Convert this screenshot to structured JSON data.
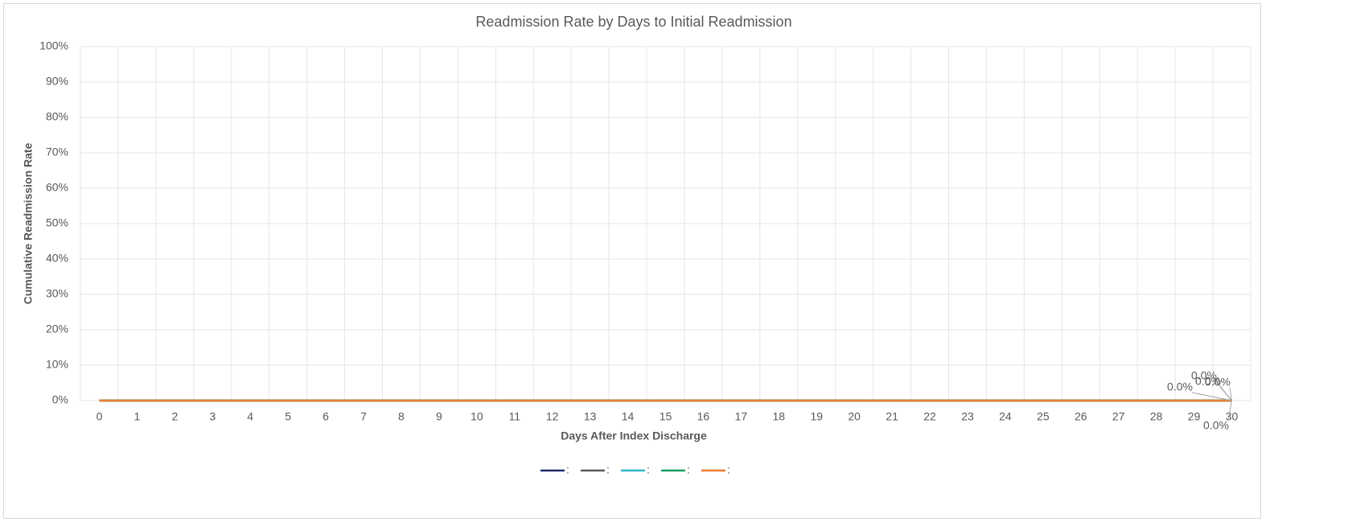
{
  "chart_data": {
    "type": "line",
    "title": "Readmission Rate by Days to Initial Readmission",
    "x_label": "Days After Index Discharge",
    "y_label": "Cumulative Readmission Rate",
    "categories": [
      "0",
      "1",
      "2",
      "3",
      "4",
      "5",
      "6",
      "7",
      "8",
      "9",
      "10",
      "11",
      "12",
      "13",
      "14",
      "15",
      "16",
      "17",
      "18",
      "19",
      "20",
      "21",
      "22",
      "23",
      "24",
      "25",
      "26",
      "27",
      "28",
      "29",
      "30"
    ],
    "ylim": [
      0,
      100
    ],
    "yticks": [
      {
        "value": 0,
        "label": "0%"
      },
      {
        "value": 10,
        "label": "10%"
      },
      {
        "value": 20,
        "label": "20%"
      },
      {
        "value": 30,
        "label": "30%"
      },
      {
        "value": 40,
        "label": "40%"
      },
      {
        "value": 50,
        "label": "50%"
      },
      {
        "value": 60,
        "label": "60%"
      },
      {
        "value": 70,
        "label": "70%"
      },
      {
        "value": 80,
        "label": "80%"
      },
      {
        "value": 90,
        "label": "90%"
      },
      {
        "value": 100,
        "label": "100%"
      }
    ],
    "grid": true,
    "legend": "bottom",
    "series": [
      {
        "name": ":",
        "color": "#1f2a6b",
        "values": [
          0,
          0,
          0,
          0,
          0,
          0,
          0,
          0,
          0,
          0,
          0,
          0,
          0,
          0,
          0,
          0,
          0,
          0,
          0,
          0,
          0,
          0,
          0,
          0,
          0,
          0,
          0,
          0,
          0,
          0,
          0
        ],
        "value_labels": [
          null,
          null,
          null,
          null,
          null,
          null,
          null,
          null,
          null,
          null,
          null,
          null,
          null,
          null,
          null,
          null,
          null,
          null,
          null,
          null,
          null,
          null,
          null,
          null,
          null,
          null,
          null,
          null,
          null,
          null,
          "0.0%"
        ]
      },
      {
        "name": ":",
        "color": "#595959",
        "values": [
          0,
          0,
          0,
          0,
          0,
          0,
          0,
          0,
          0,
          0,
          0,
          0,
          0,
          0,
          0,
          0,
          0,
          0,
          0,
          0,
          0,
          0,
          0,
          0,
          0,
          0,
          0,
          0,
          0,
          0,
          0
        ],
        "value_labels": [
          null,
          null,
          null,
          null,
          null,
          null,
          null,
          null,
          null,
          null,
          null,
          null,
          null,
          null,
          null,
          null,
          null,
          null,
          null,
          null,
          null,
          null,
          null,
          null,
          null,
          null,
          null,
          null,
          null,
          null,
          "0.0%"
        ]
      },
      {
        "name": ":",
        "color": "#2bb7c8",
        "values": [
          0,
          0,
          0,
          0,
          0,
          0,
          0,
          0,
          0,
          0,
          0,
          0,
          0,
          0,
          0,
          0,
          0,
          0,
          0,
          0,
          0,
          0,
          0,
          0,
          0,
          0,
          0,
          0,
          0,
          0,
          0
        ],
        "value_labels": [
          null,
          null,
          null,
          null,
          null,
          null,
          null,
          null,
          null,
          null,
          null,
          null,
          null,
          null,
          null,
          null,
          null,
          null,
          null,
          null,
          null,
          null,
          null,
          null,
          null,
          null,
          null,
          null,
          null,
          null,
          "0.0%"
        ]
      },
      {
        "name": ":",
        "color": "#1a9a5b",
        "values": [
          0,
          0,
          0,
          0,
          0,
          0,
          0,
          0,
          0,
          0,
          0,
          0,
          0,
          0,
          0,
          0,
          0,
          0,
          0,
          0,
          0,
          0,
          0,
          0,
          0,
          0,
          0,
          0,
          0,
          0,
          0
        ],
        "value_labels": [
          null,
          null,
          null,
          null,
          null,
          null,
          null,
          null,
          null,
          null,
          null,
          null,
          null,
          null,
          null,
          null,
          null,
          null,
          null,
          null,
          null,
          null,
          null,
          null,
          null,
          null,
          null,
          null,
          null,
          null,
          "0.0%"
        ]
      },
      {
        "name": ":",
        "color": "#ed7d31",
        "values": [
          0,
          0,
          0,
          0,
          0,
          0,
          0,
          0,
          0,
          0,
          0,
          0,
          0,
          0,
          0,
          0,
          0,
          0,
          0,
          0,
          0,
          0,
          0,
          0,
          0,
          0,
          0,
          0,
          0,
          0,
          0
        ],
        "value_labels": [
          null,
          null,
          null,
          null,
          null,
          null,
          null,
          null,
          null,
          null,
          null,
          null,
          null,
          null,
          null,
          null,
          null,
          null,
          null,
          null,
          null,
          null,
          null,
          null,
          null,
          null,
          null,
          null,
          null,
          null,
          "0.0%"
        ]
      }
    ]
  }
}
